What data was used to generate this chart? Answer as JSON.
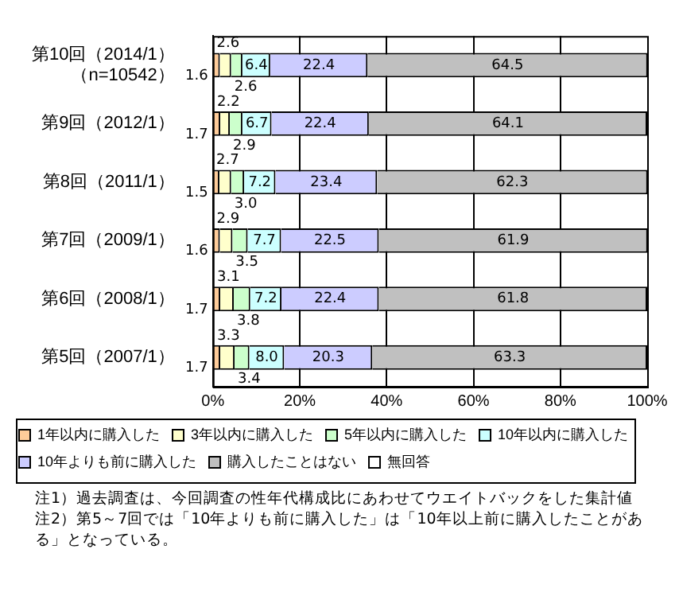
{
  "chart_data": {
    "type": "bar",
    "orientation": "horizontal",
    "stacked": true,
    "categories": [
      "第10回（2014/1）（n=10542）",
      "第9回（2012/1）",
      "第8回（2011/1）",
      "第7回（2009/1）",
      "第6回（2008/1）",
      "第5回（2007/1）"
    ],
    "series": [
      {
        "name": "1年以内に購入した",
        "color": "#ffcc99",
        "values": [
          1.6,
          1.7,
          1.5,
          1.6,
          1.7,
          1.7
        ],
        "value_labels": [
          "1.6",
          "1.7",
          "1.5",
          "1.6",
          "1.7",
          "1.7"
        ]
      },
      {
        "name": "3年以内に購入した",
        "color": "#ffffcc",
        "values": [
          2.6,
          2.2,
          2.7,
          2.9,
          3.1,
          3.3
        ],
        "value_labels": [
          "2.6",
          "2.2",
          "2.7",
          "2.9",
          "3.1",
          "3.3"
        ]
      },
      {
        "name": "5年以内に購入した",
        "color": "#ccffcc",
        "values": [
          2.6,
          2.9,
          3.0,
          3.5,
          3.8,
          3.4
        ],
        "value_labels": [
          "2.6",
          "2.9",
          "3.0",
          "3.5",
          "3.8",
          "3.4"
        ]
      },
      {
        "name": "10年以内に購入した",
        "color": "#ccffff",
        "values": [
          6.4,
          6.7,
          7.2,
          7.7,
          7.2,
          8.0
        ],
        "value_labels": [
          "6.4",
          "6.7",
          "7.2",
          "7.7",
          "7.2",
          "8.0"
        ]
      },
      {
        "name": "10年よりも前に購入した",
        "color": "#ccccff",
        "values": [
          22.4,
          22.4,
          23.4,
          22.5,
          22.4,
          20.3
        ],
        "value_labels": [
          "22.4",
          "22.4",
          "23.4",
          "22.5",
          "22.4",
          "20.3"
        ]
      },
      {
        "name": "購入したことはない",
        "color": "#c0c0c0",
        "values": [
          64.5,
          64.1,
          62.3,
          61.9,
          61.8,
          63.3
        ],
        "value_labels": [
          "64.5",
          "64.1",
          "62.3",
          "61.9",
          "61.8",
          "63.3"
        ]
      },
      {
        "name": "無回答",
        "color": "#ffffff",
        "values": [
          null,
          null,
          null,
          null,
          null,
          null
        ]
      }
    ],
    "xlim": [
      0,
      100
    ],
    "xticks": [
      {
        "value": 0,
        "label": "0%"
      },
      {
        "value": 20,
        "label": "20%"
      },
      {
        "value": 40,
        "label": "40%"
      },
      {
        "value": 60,
        "label": "60%"
      },
      {
        "value": 80,
        "label": "80%"
      },
      {
        "value": 100,
        "label": "100%"
      }
    ],
    "grid": "x",
    "legend": "bottom",
    "annotations": [
      "注1）過去調査は、今回調査の性年代構成比にあわせてウエイトバックをした集計値",
      "注2）第5～7回では「10年よりも前に購入した」は「10年以上前に購入したことがある」となっている。"
    ]
  }
}
